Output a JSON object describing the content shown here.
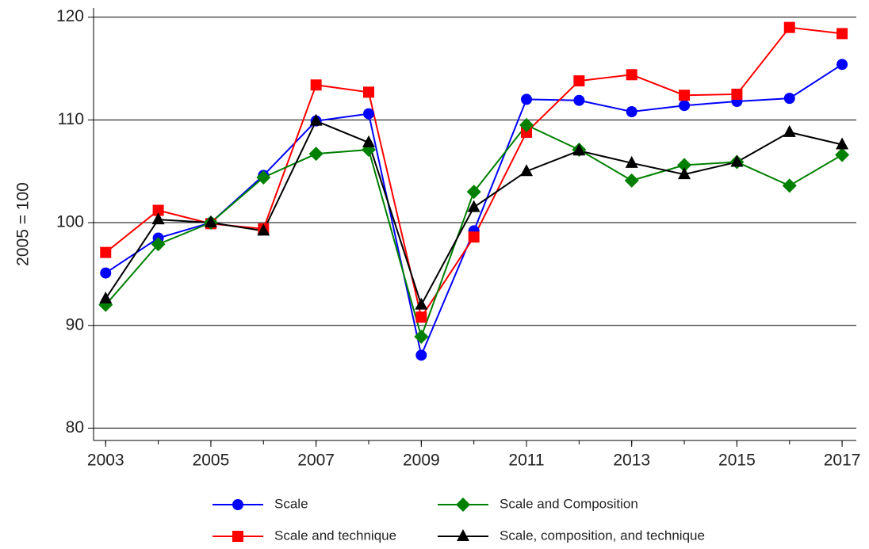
{
  "chart_data": {
    "type": "line",
    "y_label": "2005 = 100",
    "x": [
      2003,
      2004,
      2005,
      2006,
      2007,
      2008,
      2009,
      2010,
      2011,
      2012,
      2013,
      2014,
      2015,
      2016,
      2017
    ],
    "xlim": [
      2002.77,
      2017.27
    ],
    "xticks": [
      2003,
      2005,
      2007,
      2009,
      2011,
      2013,
      2015,
      2017
    ],
    "ylim": [
      78.8,
      120.9
    ],
    "yticks": [
      80,
      90,
      100,
      110,
      120
    ],
    "grid": true,
    "series": [
      {
        "name": "Scale",
        "color": "#0000ff",
        "marker": "circle",
        "values": [
          95.1,
          98.5,
          100,
          104.6,
          109.9,
          110.6,
          87.1,
          99.2,
          112.0,
          111.9,
          110.8,
          111.4,
          111.8,
          112.1,
          115.4
        ]
      },
      {
        "name": "Scale and technique",
        "color": "#ff0000",
        "marker": "square",
        "values": [
          97.1,
          101.2,
          99.9,
          99.4,
          113.4,
          112.7,
          90.8,
          98.6,
          108.8,
          113.8,
          114.4,
          112.4,
          112.5,
          119.0,
          118.4
        ]
      },
      {
        "name": "Scale and Composition",
        "color": "#008000",
        "marker": "diamond",
        "values": [
          92.0,
          97.9,
          100,
          104.4,
          106.7,
          107.1,
          88.9,
          103.0,
          109.5,
          107.1,
          104.1,
          105.6,
          105.9,
          103.6,
          106.6
        ]
      },
      {
        "name": "Scale, composition, and technique",
        "color": "#000000",
        "marker": "triangle",
        "values": [
          92.6,
          100.3,
          100,
          99.2,
          109.9,
          107.8,
          92.0,
          101.5,
          105.0,
          107.0,
          105.8,
          104.7,
          105.9,
          108.8,
          107.6
        ]
      }
    ]
  }
}
